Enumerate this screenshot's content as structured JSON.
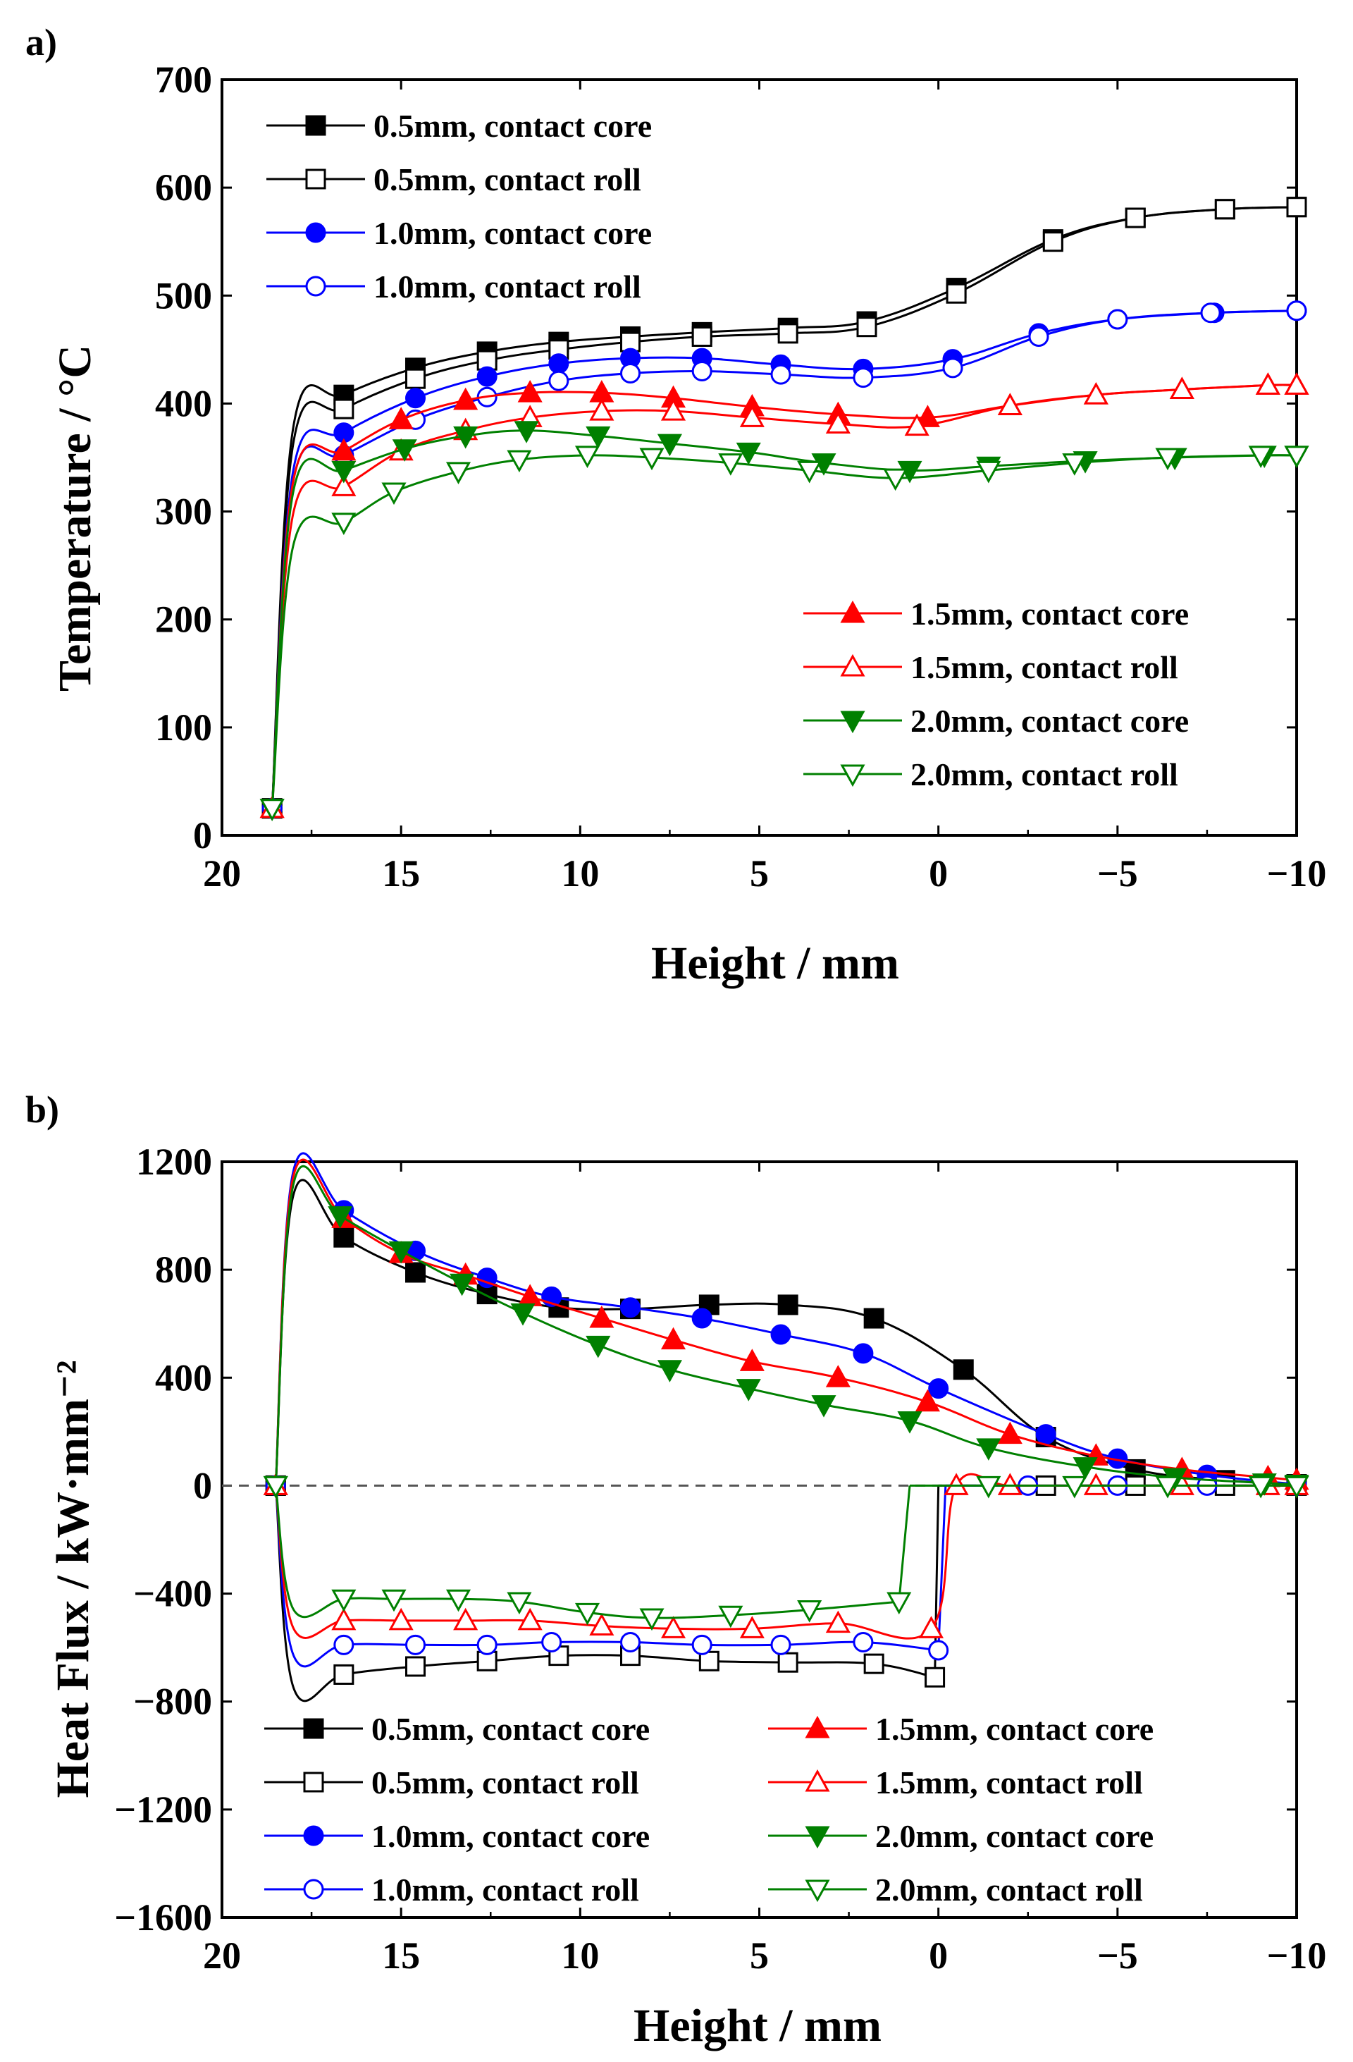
{
  "figure": {
    "panel_a_label": "a)",
    "panel_b_label": "b)"
  },
  "colors": {
    "black": "#000000",
    "blue": "#0000ff",
    "red": "#ff0000",
    "green": "#008000"
  },
  "series_meta": [
    {
      "key": "s05core",
      "name": "0.5mm, contact core",
      "color": "black",
      "marker": "square",
      "filled": true
    },
    {
      "key": "s05roll",
      "name": "0.5mm, contact roll",
      "color": "black",
      "marker": "square",
      "filled": false
    },
    {
      "key": "s10core",
      "name": "1.0mm, contact core",
      "color": "blue",
      "marker": "circle",
      "filled": true
    },
    {
      "key": "s10roll",
      "name": "1.0mm, contact roll",
      "color": "blue",
      "marker": "circle",
      "filled": false
    },
    {
      "key": "s15core",
      "name": "1.5mm, contact core",
      "color": "red",
      "marker": "triangle-up",
      "filled": true
    },
    {
      "key": "s15roll",
      "name": "1.5mm, contact roll",
      "color": "red",
      "marker": "triangle-up",
      "filled": false
    },
    {
      "key": "s20core",
      "name": "2.0mm, contact core",
      "color": "green",
      "marker": "triangle-down",
      "filled": true
    },
    {
      "key": "s20roll",
      "name": "2.0mm, contact roll",
      "color": "green",
      "marker": "triangle-down",
      "filled": false
    }
  ],
  "chart_data": [
    {
      "type": "line",
      "panel": "a)",
      "title": "",
      "xlabel": "Height / mm",
      "ylabel": "Temperature / °C",
      "xlim": [
        20,
        -10
      ],
      "ylim": [
        0,
        700
      ],
      "xticks": [
        20,
        15,
        10,
        5,
        0,
        -5,
        -10
      ],
      "xtick_labels": [
        "20",
        "15",
        "10",
        "5",
        "0",
        "−5",
        "−10"
      ],
      "yticks": [
        0,
        100,
        200,
        300,
        400,
        500,
        600,
        700
      ],
      "ytick_labels": [
        "0",
        "100",
        "200",
        "300",
        "400",
        "500",
        "600",
        "700"
      ],
      "legend": "top-left and bottom-right",
      "series": [
        {
          "key": "s05core",
          "x": [
            18.6,
            18.0,
            16.6,
            14.6,
            12.6,
            10.6,
            8.6,
            6.6,
            4.2,
            2.0,
            -0.5,
            -3.2,
            -5.5,
            -8.0,
            -10.0
          ],
          "y": [
            25,
            380,
            408,
            433,
            448,
            457,
            462,
            466,
            470,
            476,
            507,
            552,
            572,
            580,
            582
          ]
        },
        {
          "key": "s05roll",
          "x": [
            18.6,
            18.0,
            16.6,
            14.6,
            12.6,
            10.6,
            8.6,
            6.6,
            4.2,
            2.0,
            -0.5,
            -3.2,
            -5.5,
            -8.0,
            -10.0
          ],
          "y": [
            25,
            365,
            395,
            423,
            440,
            450,
            457,
            462,
            465,
            471,
            502,
            550,
            572,
            580,
            582
          ]
        },
        {
          "key": "s10core",
          "x": [
            18.6,
            18.0,
            16.6,
            14.6,
            12.6,
            10.6,
            8.6,
            6.6,
            4.4,
            2.1,
            -0.4,
            -2.8,
            -5.0,
            -7.7,
            -10.0
          ],
          "y": [
            25,
            340,
            373,
            405,
            425,
            437,
            442,
            442,
            436,
            432,
            441,
            465,
            478,
            484,
            486
          ]
        },
        {
          "key": "s10roll",
          "x": [
            18.6,
            18.0,
            16.6,
            14.6,
            12.6,
            10.6,
            8.6,
            6.6,
            4.4,
            2.1,
            -0.4,
            -2.8,
            -5.0,
            -7.6,
            -10.0
          ],
          "y": [
            25,
            330,
            352,
            385,
            406,
            421,
            428,
            430,
            427,
            424,
            433,
            462,
            478,
            484,
            486
          ]
        },
        {
          "key": "s15core",
          "x": [
            18.6,
            18.0,
            16.6,
            15.0,
            13.2,
            11.4,
            9.4,
            7.4,
            5.2,
            2.8,
            0.3,
            -2.0,
            -4.4,
            -6.8,
            -9.2,
            -10.0
          ],
          "y": [
            25,
            330,
            356,
            385,
            403,
            410,
            410,
            405,
            397,
            390,
            387,
            398,
            408,
            413,
            417,
            417
          ]
        },
        {
          "key": "s15roll",
          "x": [
            18.6,
            18.0,
            16.6,
            15.0,
            13.2,
            11.4,
            9.4,
            7.4,
            5.2,
            2.8,
            0.6,
            -2.0,
            -4.4,
            -6.8,
            -9.2,
            -10.0
          ],
          "y": [
            25,
            300,
            323,
            356,
            375,
            387,
            393,
            393,
            387,
            381,
            379,
            398,
            408,
            413,
            417,
            417
          ]
        },
        {
          "key": "s20core",
          "x": [
            18.6,
            18.0,
            16.6,
            14.9,
            13.2,
            11.5,
            9.5,
            7.5,
            5.3,
            3.2,
            0.8,
            -1.4,
            -4.1,
            -6.6,
            -9.1,
            -10.0
          ],
          "y": [
            25,
            320,
            338,
            358,
            370,
            375,
            370,
            363,
            355,
            345,
            338,
            342,
            347,
            350,
            352,
            352
          ]
        },
        {
          "key": "s20roll",
          "x": [
            18.6,
            18.0,
            16.6,
            15.2,
            13.4,
            11.7,
            9.8,
            8.0,
            5.8,
            3.6,
            1.2,
            -1.4,
            -3.8,
            -6.4,
            -9.0,
            -10.0
          ],
          "y": [
            25,
            270,
            290,
            318,
            337,
            348,
            352,
            350,
            345,
            338,
            331,
            338,
            345,
            350,
            352,
            352
          ]
        }
      ],
      "legend_groups": [
        [
          "s05core",
          "s05roll",
          "s10core",
          "s10roll"
        ],
        [
          "s15core",
          "s15roll",
          "s20core",
          "s20roll"
        ]
      ]
    },
    {
      "type": "line",
      "panel": "b)",
      "title": "",
      "xlabel": "Height / mm",
      "ylabel": "Heat Flux / kW·mm⁻²",
      "xlim": [
        20,
        -10
      ],
      "ylim": [
        -1600,
        1200
      ],
      "xticks": [
        20,
        15,
        10,
        5,
        0,
        -5,
        -10
      ],
      "xtick_labels": [
        "20",
        "15",
        "10",
        "5",
        "0",
        "−5",
        "−10"
      ],
      "yticks": [
        -1600,
        -1200,
        -800,
        -400,
        0,
        400,
        800,
        1200
      ],
      "ytick_labels": [
        "−1600",
        "−1200",
        "−800",
        "−400",
        "0",
        "400",
        "800",
        "1200"
      ],
      "zero_line": "dashed",
      "legend": "bottom, two columns",
      "series": [
        {
          "key": "s05core",
          "x": [
            18.5,
            18.0,
            16.6,
            14.6,
            12.6,
            10.6,
            8.6,
            6.4,
            4.2,
            1.8,
            -0.7,
            -3.0,
            -5.5,
            -8.0,
            -10.0
          ],
          "y": [
            0,
            1080,
            920,
            790,
            710,
            660,
            655,
            670,
            670,
            620,
            430,
            180,
            60,
            20,
            5
          ]
        },
        {
          "key": "s05roll",
          "x": [
            18.5,
            18.0,
            16.6,
            14.6,
            12.6,
            10.6,
            8.6,
            6.4,
            4.2,
            1.8,
            0.1,
            0.0,
            -3.0,
            -5.5,
            -8.0,
            -10.0
          ],
          "y": [
            0,
            -750,
            -700,
            -670,
            -650,
            -630,
            -630,
            -650,
            -655,
            -660,
            -710,
            0,
            0,
            0,
            0,
            0
          ]
        },
        {
          "key": "s10core",
          "x": [
            18.5,
            18.0,
            16.6,
            14.6,
            12.6,
            10.8,
            8.6,
            6.6,
            4.4,
            2.1,
            0.0,
            -3.0,
            -5.0,
            -7.5,
            -10.0
          ],
          "y": [
            0,
            1170,
            1020,
            870,
            770,
            700,
            660,
            620,
            560,
            490,
            360,
            190,
            100,
            40,
            5
          ]
        },
        {
          "key": "s10roll",
          "x": [
            18.5,
            18.0,
            16.6,
            14.6,
            12.6,
            10.8,
            8.6,
            6.6,
            4.4,
            2.1,
            0.0,
            -0.2,
            -2.5,
            -5.0,
            -7.5,
            -10.0
          ],
          "y": [
            0,
            -630,
            -590,
            -590,
            -590,
            -580,
            -580,
            -590,
            -590,
            -580,
            -610,
            0,
            0,
            0,
            0,
            0
          ]
        },
        {
          "key": "s15core",
          "x": [
            18.5,
            18.0,
            16.6,
            15.0,
            13.2,
            11.4,
            9.4,
            7.4,
            5.2,
            2.8,
            0.3,
            -2.0,
            -4.4,
            -6.8,
            -9.2,
            -10.0
          ],
          "y": [
            0,
            1150,
            990,
            860,
            780,
            700,
            620,
            540,
            460,
            400,
            310,
            190,
            110,
            60,
            30,
            20
          ]
        },
        {
          "key": "s15roll",
          "x": [
            18.5,
            18.0,
            16.6,
            15.0,
            13.2,
            11.4,
            9.4,
            7.4,
            5.2,
            2.8,
            0.2,
            -0.5,
            -2.0,
            -4.4,
            -6.8,
            -9.2,
            -10.0
          ],
          "y": [
            0,
            -530,
            -500,
            -500,
            -500,
            -500,
            -520,
            -530,
            -530,
            -510,
            -530,
            0,
            0,
            0,
            0,
            0,
            0
          ]
        },
        {
          "key": "s20core",
          "x": [
            18.5,
            18.0,
            16.7,
            15.0,
            13.3,
            11.6,
            9.5,
            7.5,
            5.3,
            3.2,
            0.8,
            -1.4,
            -4.1,
            -6.6,
            -9.1,
            -10.0
          ],
          "y": [
            0,
            1120,
            1000,
            870,
            750,
            640,
            520,
            430,
            360,
            300,
            240,
            140,
            70,
            30,
            10,
            5
          ]
        },
        {
          "key": "s20roll",
          "x": [
            18.5,
            18.0,
            16.6,
            15.2,
            13.4,
            11.7,
            9.8,
            8.0,
            5.8,
            3.6,
            1.1,
            0.8,
            -1.4,
            -3.8,
            -6.4,
            -9.0,
            -10.0
          ],
          "y": [
            0,
            -460,
            -420,
            -420,
            -420,
            -430,
            -470,
            -490,
            -480,
            -460,
            -430,
            0,
            0,
            0,
            0,
            0,
            0
          ]
        }
      ],
      "legend_groups": [
        [
          "s05core",
          "s05roll",
          "s10core",
          "s10roll"
        ],
        [
          "s15core",
          "s15roll",
          "s20core",
          "s20roll"
        ]
      ]
    }
  ]
}
